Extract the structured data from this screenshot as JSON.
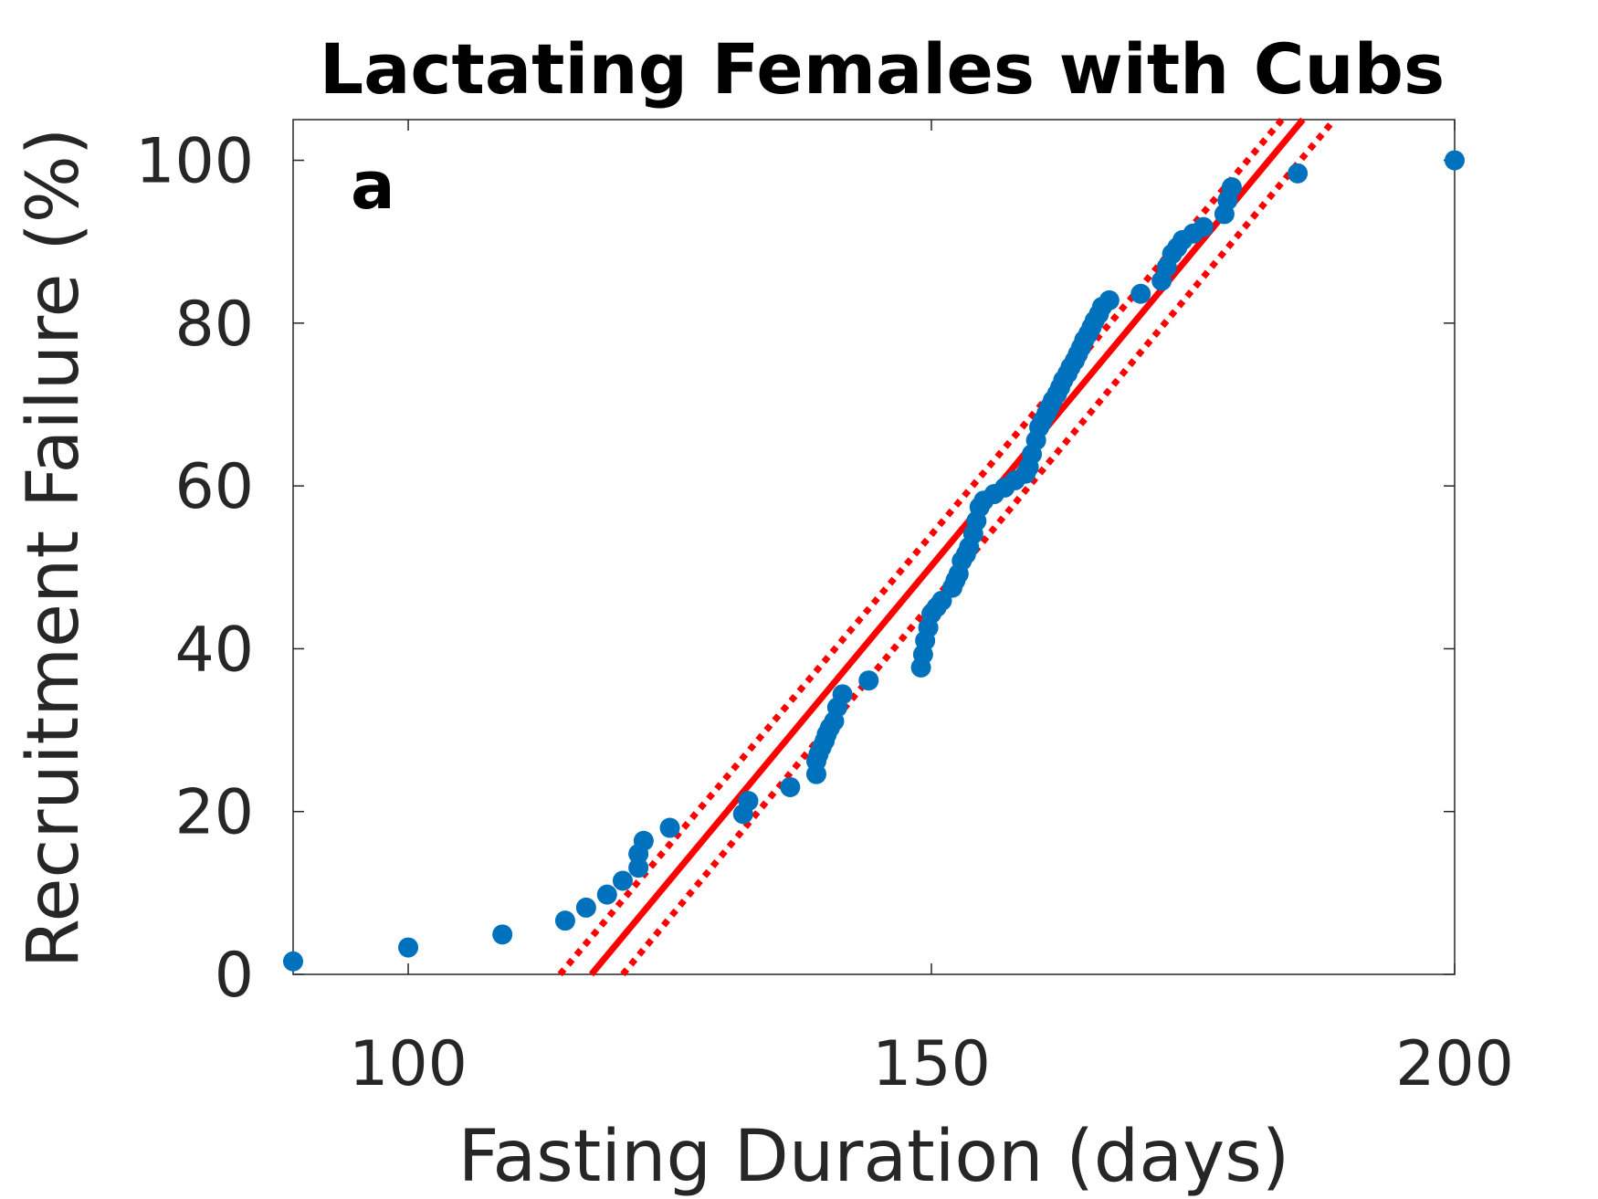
{
  "chart_data": {
    "type": "scatter",
    "title": "Lactating Females with Cubs",
    "panel_label": "a",
    "xlabel": "Fasting Duration (days)",
    "ylabel": "Recruitment Failure (%)",
    "xlim": [
      89,
      200
    ],
    "ylim": [
      0,
      105
    ],
    "x_ticks": [
      100,
      150,
      200
    ],
    "y_ticks": [
      0,
      20,
      40,
      60,
      80,
      100
    ],
    "grid": false,
    "colors": {
      "points": "#0072BD",
      "fit": "#FF0000",
      "axis": "#262626"
    },
    "series": [
      {
        "type": "scatter",
        "x": [
          89,
          100,
          109,
          115,
          117,
          119,
          120.5,
          122,
          122,
          122.5,
          125,
          132,
          132.5,
          136.5,
          139,
          139,
          139.2,
          139.5,
          139.8,
          140,
          140.3,
          140.7,
          141,
          141.5,
          144,
          149,
          149.2,
          149.4,
          149.7,
          150,
          150.5,
          151,
          152,
          152.3,
          152.6,
          152.9,
          153.3,
          153.6,
          154,
          154.3,
          154.6,
          155,
          156,
          157,
          158,
          159,
          159.3,
          159.6,
          160,
          160.3,
          160.6,
          161,
          161.3,
          161.6,
          162,
          162.3,
          162.6,
          163,
          163.3,
          163.7,
          164,
          164.3,
          164.6,
          165,
          165.3,
          165.6,
          166,
          166.3,
          167,
          170,
          172,
          172.5,
          173,
          173.5,
          174,
          175,
          176,
          178,
          178.3,
          178.7,
          185,
          200
        ],
        "y": [
          1.6,
          3.3,
          4.9,
          6.6,
          8.2,
          9.8,
          11.5,
          13.1,
          14.8,
          16.4,
          18.0,
          19.7,
          21.3,
          23.0,
          24.6,
          26.2,
          27.0,
          27.9,
          28.7,
          29.5,
          30.3,
          31.1,
          32.8,
          34.4,
          36.1,
          37.7,
          39.3,
          41.0,
          42.6,
          44.3,
          45.1,
          45.9,
          47.5,
          48.4,
          49.2,
          50.8,
          51.6,
          52.5,
          54.1,
          55.7,
          57.4,
          58.2,
          59.0,
          59.8,
          60.7,
          61.5,
          62.3,
          63.9,
          65.6,
          67.2,
          68.0,
          68.9,
          69.7,
          70.5,
          71.3,
          72.1,
          73.0,
          73.8,
          74.6,
          75.4,
          76.2,
          77.0,
          77.9,
          78.7,
          79.5,
          80.3,
          81.1,
          82.0,
          82.8,
          83.6,
          85.2,
          86.9,
          88.5,
          89.3,
          90.2,
          91.0,
          91.8,
          93.4,
          95.1,
          96.7,
          98.4,
          100
        ]
      },
      {
        "type": "line",
        "style": "solid",
        "x": [
          117.5,
          185.5
        ],
        "y": [
          0,
          105
        ]
      },
      {
        "type": "line",
        "style": "dotted",
        "x": [
          114.5,
          183.5
        ],
        "y": [
          0,
          105
        ]
      },
      {
        "type": "line",
        "style": "dotted",
        "x": [
          120.5,
          188.5
        ],
        "y": [
          0,
          105
        ]
      }
    ]
  }
}
